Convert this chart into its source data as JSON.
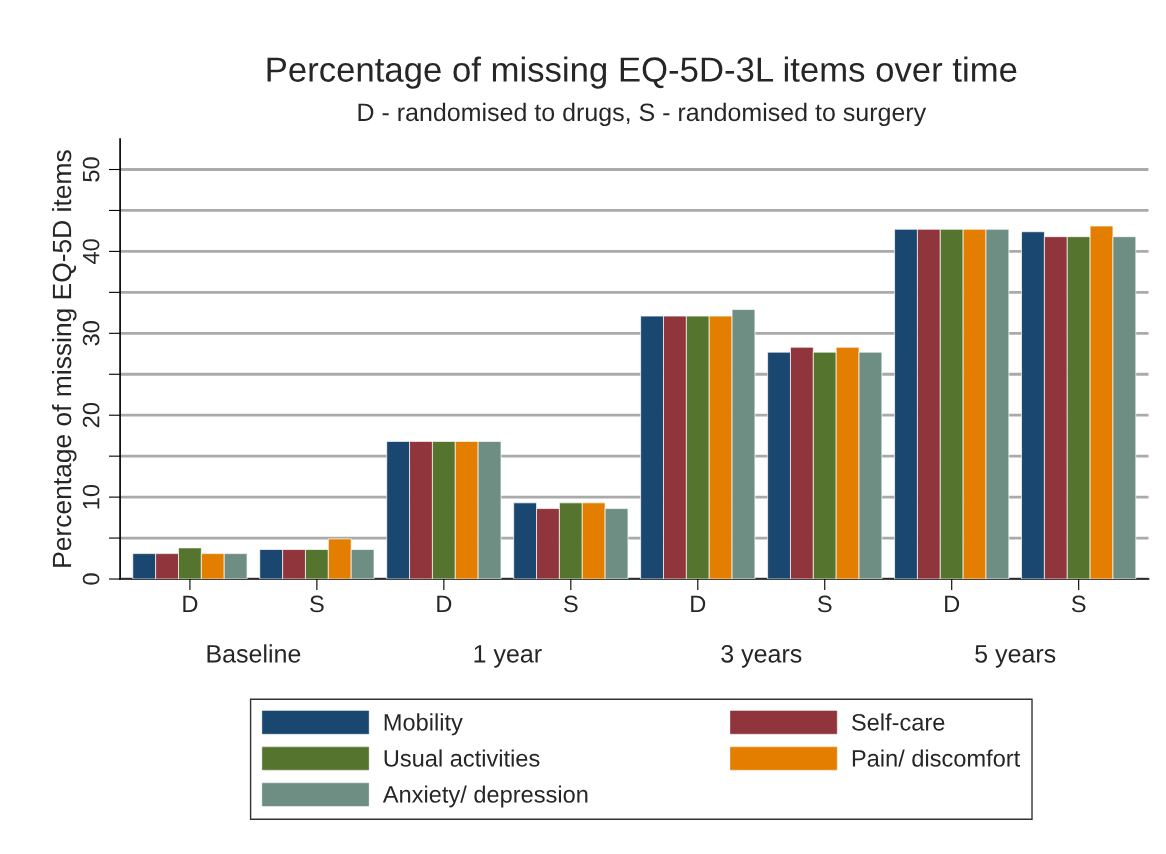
{
  "chart_data": {
    "type": "bar",
    "title": "Percentage of missing EQ-5D-3L items over time",
    "subtitle": "D - randomised to drugs, S - randomised to surgery",
    "ylabel": "Percentage of missing EQ-5D items",
    "categories": [
      "D",
      "S",
      "D",
      "S",
      "D",
      "S",
      "D",
      "S"
    ],
    "annotations": [
      "Baseline",
      "1 year",
      "3 years",
      "5 years"
    ],
    "series": [
      {
        "name": "Mobility",
        "color": "#1a476f",
        "values": [
          3.1,
          3.6,
          16.8,
          9.3,
          32.1,
          27.7,
          42.7,
          42.4
        ]
      },
      {
        "name": "Self-care",
        "color": "#90353b",
        "values": [
          3.1,
          3.6,
          16.8,
          8.6,
          32.1,
          28.3,
          42.7,
          41.8
        ]
      },
      {
        "name": "Usual activities",
        "color": "#55752f",
        "values": [
          3.8,
          3.6,
          16.8,
          9.3,
          32.1,
          27.7,
          42.7,
          41.8
        ]
      },
      {
        "name": "Pain/ discomfort",
        "color": "#e37e00",
        "values": [
          3.1,
          4.9,
          16.8,
          9.3,
          32.1,
          28.3,
          42.7,
          43.1
        ]
      },
      {
        "name": "Anxiety/ depression",
        "color": "#6e8e84",
        "values": [
          3.1,
          3.6,
          16.8,
          8.6,
          32.9,
          27.7,
          42.7,
          41.8
        ]
      }
    ],
    "ylim": [
      0,
      53.7
    ],
    "yticks": [
      0,
      {
        "value": 5,
        "label": null
      },
      10,
      {
        "value": 15,
        "label": null
      },
      20,
      {
        "value": 25,
        "label": null
      },
      30,
      {
        "value": 35,
        "label": null
      },
      40,
      {
        "value": 45,
        "label": null
      },
      50
    ],
    "grid": "y",
    "legend": "bottom"
  }
}
